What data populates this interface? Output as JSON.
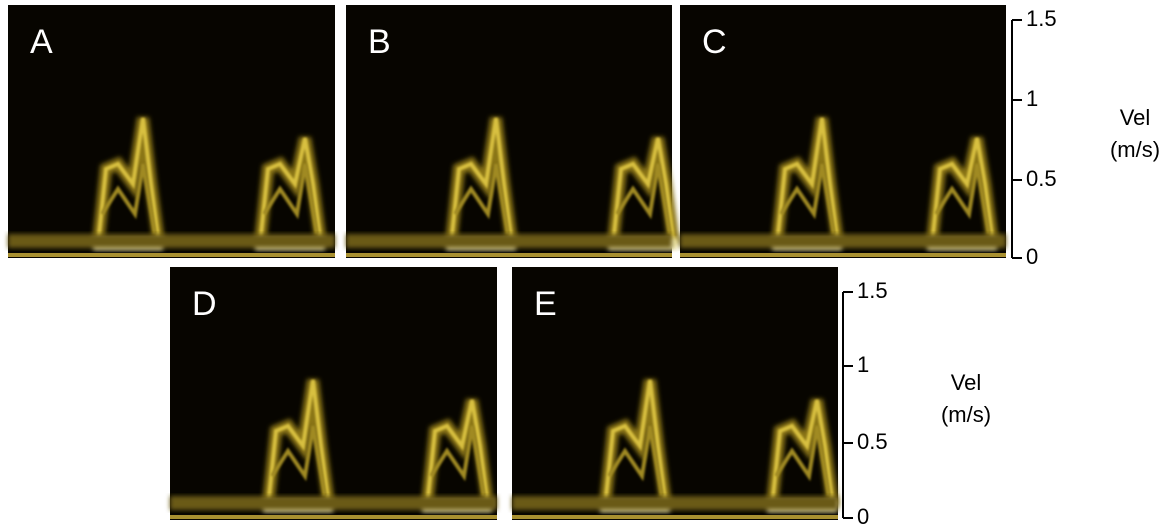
{
  "panels": [
    {
      "label": "A"
    },
    {
      "label": "B"
    },
    {
      "label": "C"
    },
    {
      "label": "D"
    },
    {
      "label": "E"
    }
  ],
  "axes": [
    {
      "title": [
        "Vel",
        "(m/s)"
      ],
      "ticks": [
        "1.5",
        "1",
        "0.5",
        "0"
      ]
    },
    {
      "title": [
        "Vel",
        "(m/s)"
      ],
      "ticks": [
        "1.5",
        "1",
        "0.5",
        "0"
      ]
    }
  ]
}
